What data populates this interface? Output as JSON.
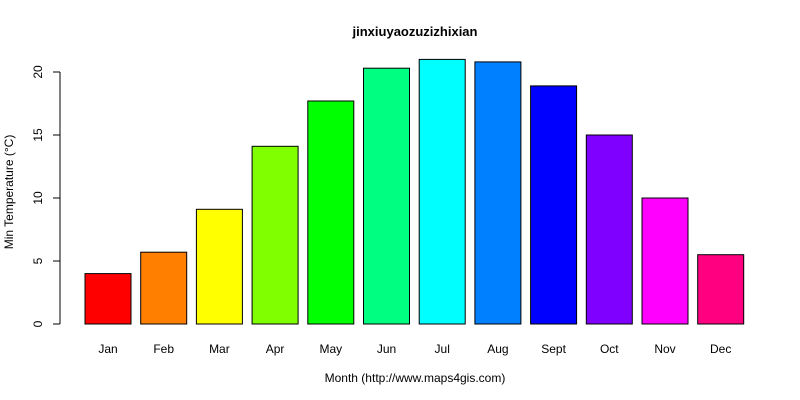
{
  "chart_data": {
    "type": "bar",
    "title": "jinxiuyaozuzizhixian",
    "xlabel": "Month (http://www.maps4gis.com)",
    "ylabel": "Min Temperature (°C)",
    "categories": [
      "Jan",
      "Feb",
      "Mar",
      "Apr",
      "May",
      "Jun",
      "Jul",
      "Aug",
      "Sept",
      "Oct",
      "Nov",
      "Dec"
    ],
    "values": [
      4.0,
      5.7,
      9.1,
      14.1,
      17.7,
      20.3,
      21.0,
      20.8,
      18.9,
      15.0,
      10.0,
      5.5
    ],
    "colors": [
      "#FF0000",
      "#FF8000",
      "#FFFF00",
      "#80FF00",
      "#00FF00",
      "#00FF80",
      "#00FFFF",
      "#0080FF",
      "#0000FF",
      "#8000FF",
      "#FF00FF",
      "#FF0080"
    ],
    "yticks": [
      0,
      5,
      10,
      15,
      20
    ],
    "ylim": [
      0,
      22
    ],
    "grid": false,
    "legend": "none"
  }
}
